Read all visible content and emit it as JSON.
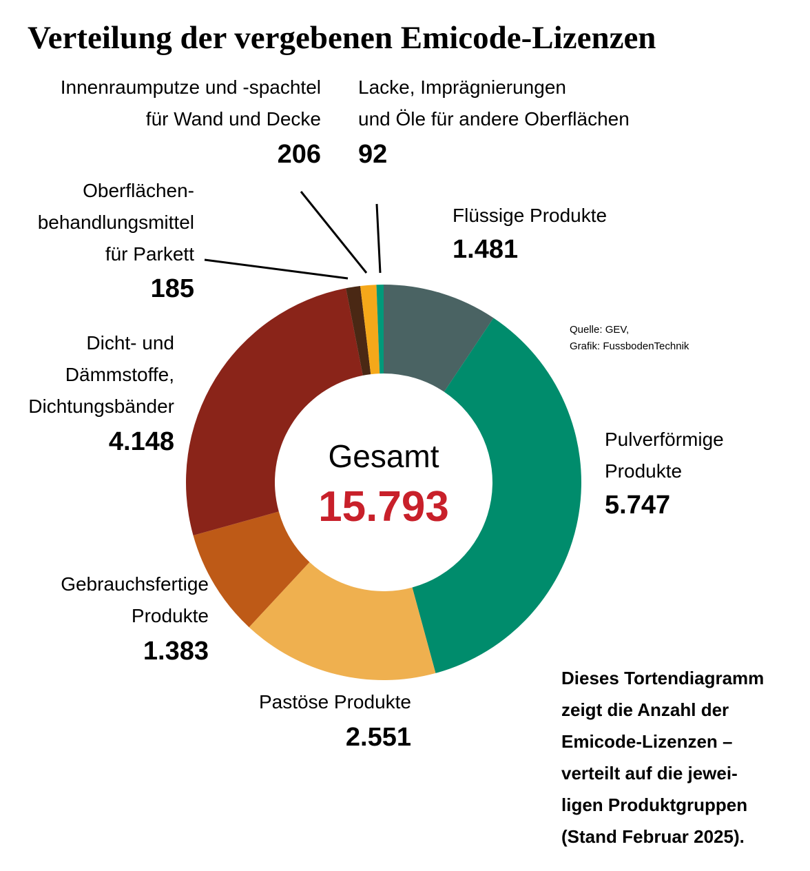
{
  "chart_data": {
    "type": "donut",
    "title": "Verteilung der vergebenen Emicode-Lizenzen",
    "categories": [
      [
        "Flüssige Produkte"
      ],
      [
        "Pulverförmige",
        "Produkte"
      ],
      [
        "Pastöse Produkte"
      ],
      [
        "Gebrauchsfertige",
        "Produkte"
      ],
      [
        "Dicht- und",
        "Dämmstoffe,",
        "Dichtungsbänder"
      ],
      [
        "Oberflächen-",
        "behandlungsmittel",
        "für Parkett"
      ],
      [
        "Innenraumputze und -spachtel",
        "für Wand und Decke"
      ],
      [
        "Lacke, Imprägnierungen",
        "und Öle für andere Oberflächen"
      ]
    ],
    "values": [
      1481,
      5747,
      2551,
      1383,
      4148,
      185,
      206,
      92
    ],
    "value_labels": [
      "1.481",
      "5.747",
      "2.551",
      "1.383",
      "4.148",
      "185",
      "206",
      "92"
    ],
    "colors": [
      "#4a6363",
      "#008c6c",
      "#efb04f",
      "#be5a17",
      "#8a2419",
      "#4a2814",
      "#f5a81a",
      "#009a7a"
    ],
    "center_label": "Gesamt",
    "total": {
      "value": 15793,
      "label": "15.793"
    },
    "source": [
      "Quelle: GEV,",
      "Grafik: FussbodenTechnik"
    ],
    "note": [
      "Dieses Tortendiagramm",
      "zeigt die Anzahl der",
      "Emicode-Lizenzen –",
      "verteilt auf die jewei-",
      "ligen Produktgruppen",
      "(Stand Februar 2025)."
    ]
  }
}
